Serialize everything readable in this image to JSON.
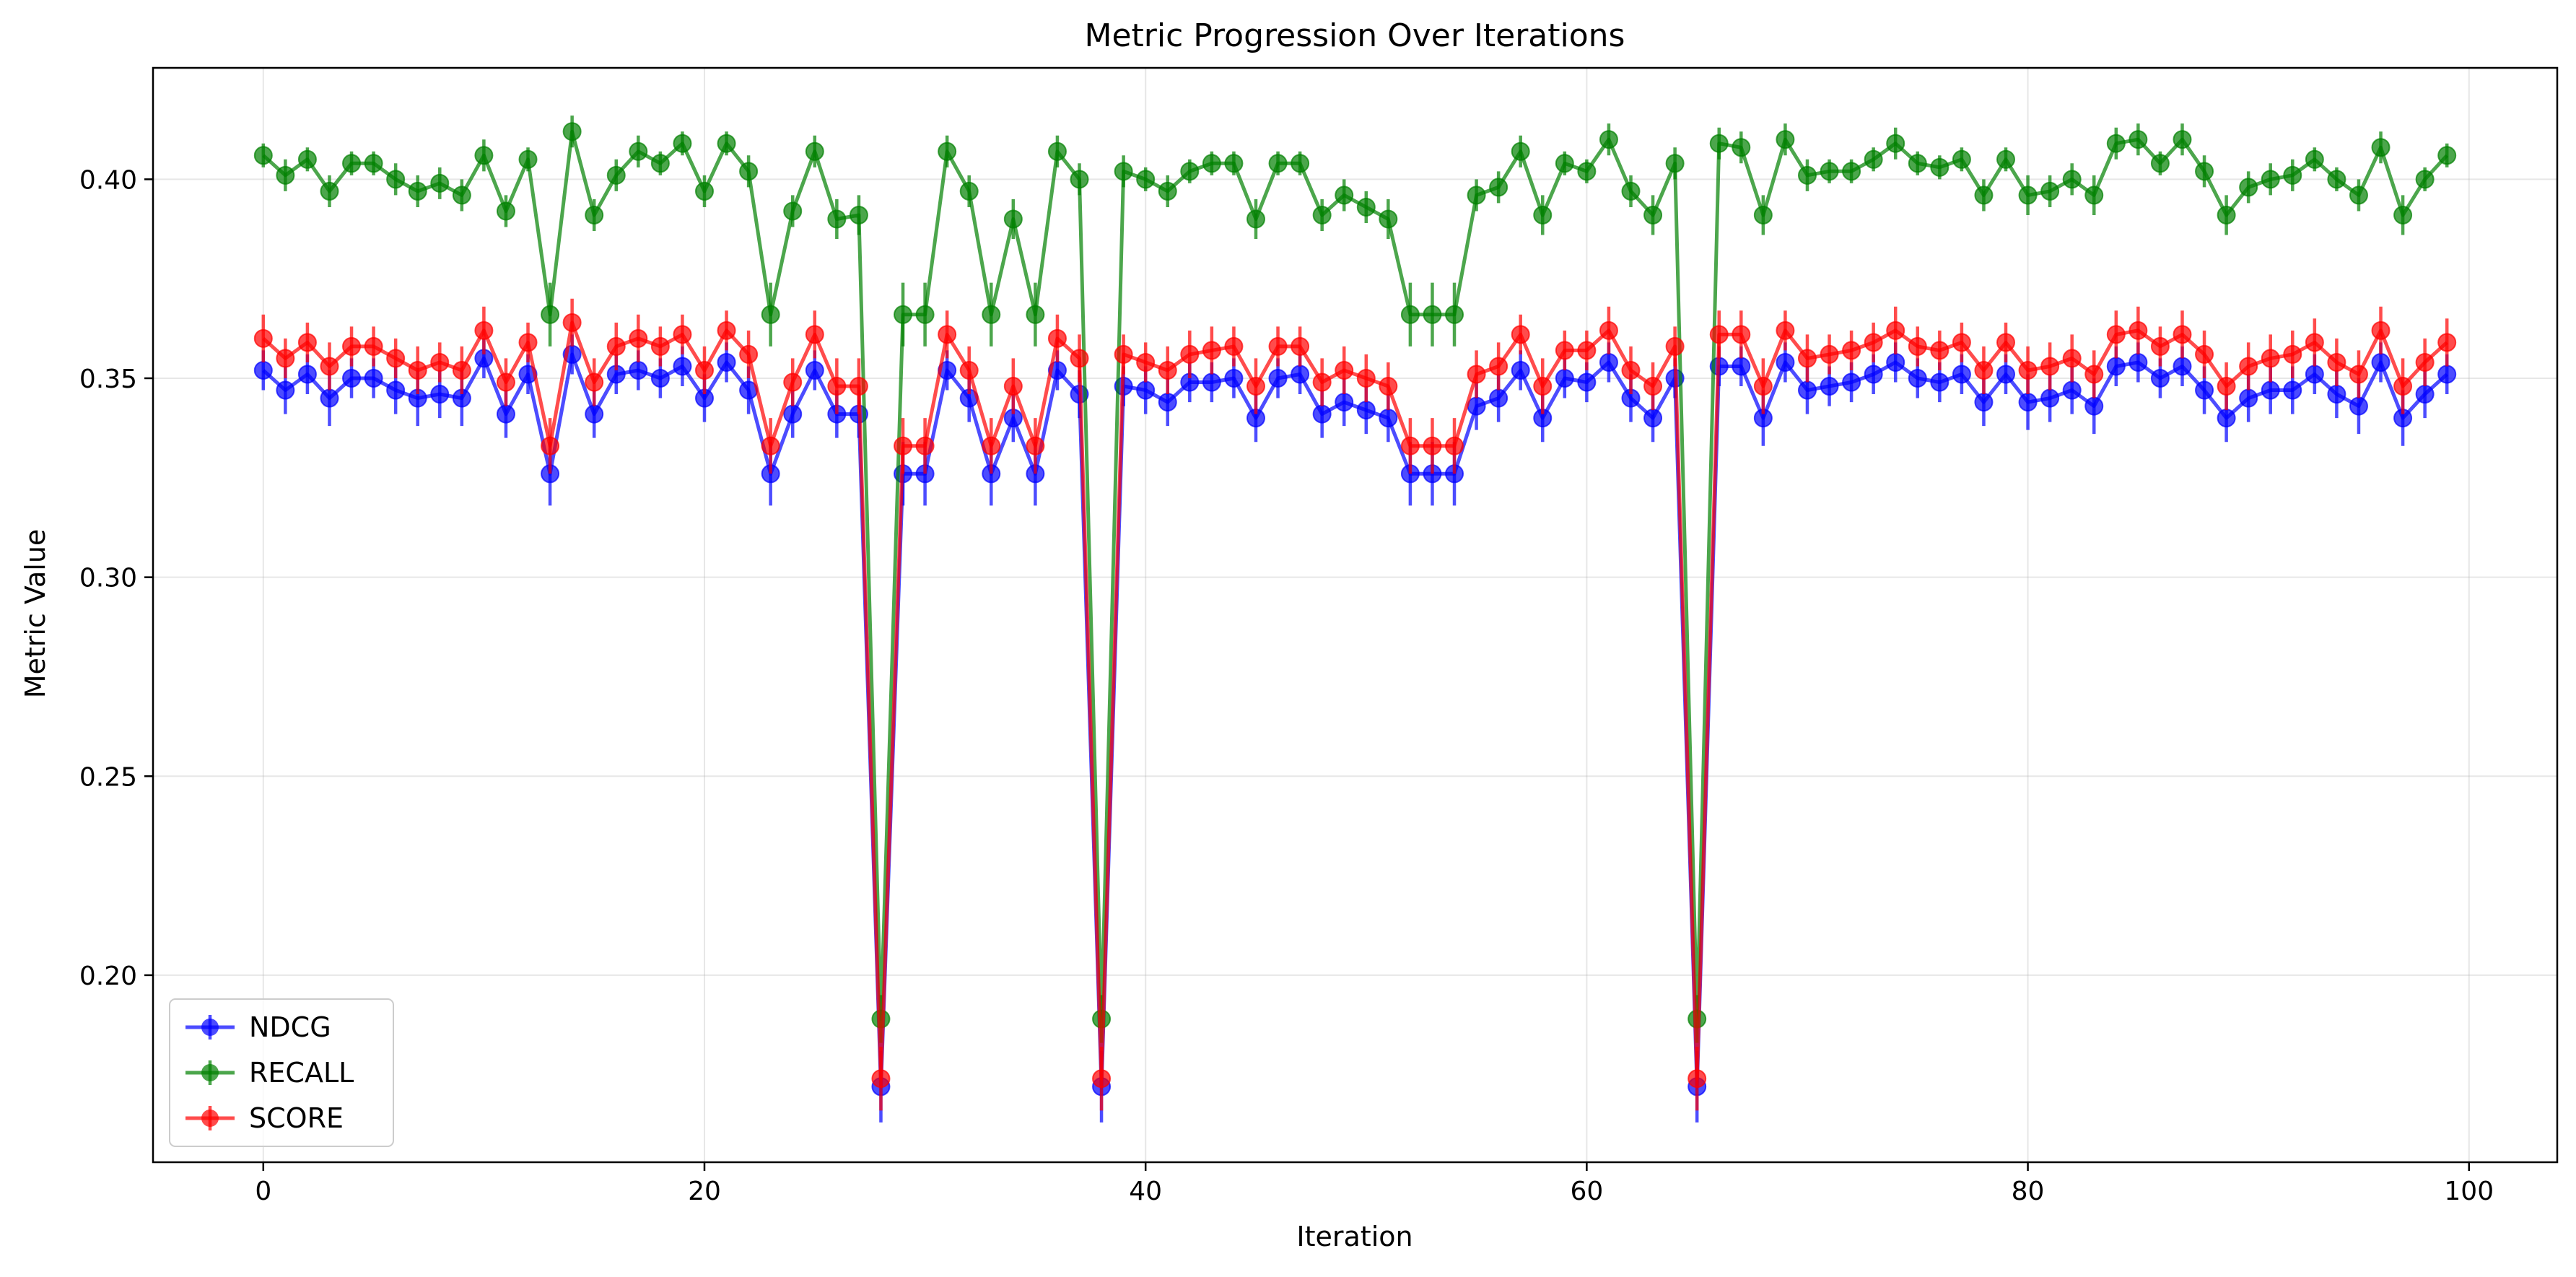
{
  "chart_data": {
    "type": "line",
    "title": "Metric Progression Over Iterations",
    "xlabel": "Iteration",
    "ylabel": "Metric Value",
    "xlim": [
      -5,
      104
    ],
    "ylim": [
      0.153,
      0.428
    ],
    "xticks": [
      0,
      20,
      40,
      60,
      80,
      100
    ],
    "yticks": [
      0.2,
      0.25,
      0.3,
      0.35,
      0.4
    ],
    "xtick_labels": [
      "0",
      "20",
      "40",
      "60",
      "80",
      "100"
    ],
    "ytick_labels": [
      "0.20",
      "0.25",
      "0.30",
      "0.35",
      "0.40"
    ],
    "grid": true,
    "legend_position": "lower-left",
    "error_bars": true,
    "series": [
      {
        "name": "NDCG",
        "color": "#0000ff",
        "values": [
          0.352,
          0.347,
          0.351,
          0.345,
          0.35,
          0.35,
          0.347,
          0.345,
          0.346,
          0.345,
          0.355,
          0.341,
          0.351,
          0.326,
          0.356,
          0.341,
          0.351,
          0.352,
          0.35,
          0.353,
          0.345,
          0.354,
          0.347,
          0.326,
          0.341,
          0.352,
          0.341,
          0.341,
          0.172,
          0.326,
          0.326,
          0.352,
          0.345,
          0.326,
          0.34,
          0.326,
          0.352,
          0.346,
          0.172,
          0.348,
          0.347,
          0.344,
          0.349,
          0.349,
          0.35,
          0.34,
          0.35,
          0.351,
          0.341,
          0.344,
          0.342,
          0.34,
          0.326,
          0.326,
          0.326,
          0.343,
          0.345,
          0.352,
          0.34,
          0.35,
          0.349,
          0.354,
          0.345,
          0.34,
          0.35,
          0.172,
          0.353,
          0.353,
          0.34,
          0.354,
          0.347,
          0.348,
          0.349,
          0.351,
          0.354,
          0.35,
          0.349,
          0.351,
          0.344,
          0.351,
          0.344,
          0.345,
          0.347,
          0.343,
          0.353,
          0.354,
          0.35,
          0.353,
          0.347,
          0.34,
          0.345,
          0.347,
          0.347,
          0.351,
          0.346,
          0.343,
          0.354,
          0.34,
          0.346,
          0.351
        ],
        "errors": [
          0.005,
          0.006,
          0.005,
          0.007,
          0.005,
          0.005,
          0.006,
          0.007,
          0.006,
          0.007,
          0.005,
          0.006,
          0.005,
          0.008,
          0.005,
          0.006,
          0.005,
          0.005,
          0.005,
          0.005,
          0.006,
          0.005,
          0.006,
          0.008,
          0.006,
          0.005,
          0.006,
          0.006,
          0.009,
          0.008,
          0.008,
          0.005,
          0.006,
          0.008,
          0.006,
          0.008,
          0.005,
          0.006,
          0.009,
          0.005,
          0.006,
          0.006,
          0.005,
          0.005,
          0.005,
          0.006,
          0.005,
          0.005,
          0.006,
          0.006,
          0.006,
          0.006,
          0.008,
          0.008,
          0.008,
          0.006,
          0.006,
          0.005,
          0.006,
          0.005,
          0.005,
          0.005,
          0.006,
          0.006,
          0.005,
          0.009,
          0.005,
          0.005,
          0.007,
          0.005,
          0.006,
          0.005,
          0.005,
          0.005,
          0.005,
          0.005,
          0.005,
          0.005,
          0.006,
          0.005,
          0.007,
          0.006,
          0.006,
          0.007,
          0.005,
          0.005,
          0.005,
          0.005,
          0.006,
          0.006,
          0.006,
          0.006,
          0.006,
          0.005,
          0.006,
          0.007,
          0.005,
          0.007,
          0.006,
          0.005
        ]
      },
      {
        "name": "RECALL",
        "color": "#008000",
        "values": [
          0.406,
          0.401,
          0.405,
          0.397,
          0.404,
          0.404,
          0.4,
          0.397,
          0.399,
          0.396,
          0.406,
          0.392,
          0.405,
          0.366,
          0.412,
          0.391,
          0.401,
          0.407,
          0.404,
          0.409,
          0.397,
          0.409,
          0.402,
          0.366,
          0.392,
          0.407,
          0.39,
          0.391,
          0.189,
          0.366,
          0.366,
          0.407,
          0.397,
          0.366,
          0.39,
          0.366,
          0.407,
          0.4,
          0.189,
          0.402,
          0.4,
          0.397,
          0.402,
          0.404,
          0.404,
          0.39,
          0.404,
          0.404,
          0.391,
          0.396,
          0.393,
          0.39,
          0.366,
          0.366,
          0.366,
          0.396,
          0.398,
          0.407,
          0.391,
          0.404,
          0.402,
          0.41,
          0.397,
          0.391,
          0.404,
          0.189,
          0.409,
          0.408,
          0.391,
          0.41,
          0.401,
          0.402,
          0.402,
          0.405,
          0.409,
          0.404,
          0.403,
          0.405,
          0.396,
          0.405,
          0.396,
          0.397,
          0.4,
          0.396,
          0.409,
          0.41,
          0.404,
          0.41,
          0.402,
          0.391,
          0.398,
          0.4,
          0.401,
          0.405,
          0.4,
          0.396,
          0.408,
          0.391,
          0.4,
          0.406
        ],
        "errors": [
          0.003,
          0.004,
          0.003,
          0.004,
          0.003,
          0.003,
          0.004,
          0.004,
          0.004,
          0.004,
          0.004,
          0.004,
          0.003,
          0.008,
          0.004,
          0.004,
          0.004,
          0.004,
          0.003,
          0.003,
          0.004,
          0.003,
          0.004,
          0.008,
          0.004,
          0.004,
          0.005,
          0.005,
          0.006,
          0.008,
          0.008,
          0.004,
          0.004,
          0.008,
          0.005,
          0.008,
          0.004,
          0.004,
          0.006,
          0.004,
          0.003,
          0.004,
          0.003,
          0.003,
          0.003,
          0.005,
          0.003,
          0.003,
          0.004,
          0.004,
          0.004,
          0.005,
          0.008,
          0.008,
          0.008,
          0.004,
          0.004,
          0.004,
          0.005,
          0.003,
          0.003,
          0.004,
          0.004,
          0.005,
          0.004,
          0.006,
          0.004,
          0.004,
          0.005,
          0.004,
          0.004,
          0.003,
          0.003,
          0.003,
          0.004,
          0.003,
          0.003,
          0.003,
          0.004,
          0.003,
          0.005,
          0.004,
          0.004,
          0.005,
          0.004,
          0.004,
          0.003,
          0.004,
          0.004,
          0.005,
          0.004,
          0.004,
          0.004,
          0.003,
          0.003,
          0.004,
          0.004,
          0.005,
          0.003,
          0.003
        ]
      },
      {
        "name": "SCORE",
        "color": "#ff0000",
        "values": [
          0.36,
          0.355,
          0.359,
          0.353,
          0.358,
          0.358,
          0.355,
          0.352,
          0.354,
          0.352,
          0.362,
          0.349,
          0.359,
          0.333,
          0.364,
          0.349,
          0.358,
          0.36,
          0.358,
          0.361,
          0.352,
          0.362,
          0.356,
          0.333,
          0.349,
          0.361,
          0.348,
          0.348,
          0.174,
          0.333,
          0.333,
          0.361,
          0.352,
          0.333,
          0.348,
          0.333,
          0.36,
          0.355,
          0.174,
          0.356,
          0.354,
          0.352,
          0.356,
          0.357,
          0.358,
          0.348,
          0.358,
          0.358,
          0.349,
          0.352,
          0.35,
          0.348,
          0.333,
          0.333,
          0.333,
          0.351,
          0.353,
          0.361,
          0.348,
          0.357,
          0.357,
          0.362,
          0.352,
          0.348,
          0.358,
          0.174,
          0.361,
          0.361,
          0.348,
          0.362,
          0.355,
          0.356,
          0.357,
          0.359,
          0.362,
          0.358,
          0.357,
          0.359,
          0.352,
          0.359,
          0.352,
          0.353,
          0.355,
          0.351,
          0.361,
          0.362,
          0.358,
          0.361,
          0.356,
          0.348,
          0.353,
          0.355,
          0.356,
          0.359,
          0.354,
          0.351,
          0.362,
          0.348,
          0.354,
          0.359
        ],
        "errors": [
          0.006,
          0.005,
          0.005,
          0.006,
          0.005,
          0.005,
          0.005,
          0.006,
          0.005,
          0.006,
          0.006,
          0.006,
          0.005,
          0.007,
          0.006,
          0.006,
          0.006,
          0.006,
          0.005,
          0.005,
          0.006,
          0.005,
          0.006,
          0.007,
          0.006,
          0.006,
          0.007,
          0.007,
          0.008,
          0.007,
          0.007,
          0.006,
          0.006,
          0.007,
          0.007,
          0.007,
          0.006,
          0.006,
          0.008,
          0.005,
          0.005,
          0.006,
          0.006,
          0.006,
          0.005,
          0.007,
          0.005,
          0.005,
          0.006,
          0.006,
          0.006,
          0.006,
          0.007,
          0.007,
          0.007,
          0.006,
          0.006,
          0.005,
          0.007,
          0.005,
          0.005,
          0.006,
          0.006,
          0.006,
          0.005,
          0.008,
          0.006,
          0.006,
          0.007,
          0.005,
          0.006,
          0.005,
          0.005,
          0.005,
          0.006,
          0.005,
          0.005,
          0.005,
          0.006,
          0.005,
          0.006,
          0.006,
          0.006,
          0.006,
          0.006,
          0.006,
          0.005,
          0.006,
          0.006,
          0.006,
          0.006,
          0.006,
          0.006,
          0.006,
          0.006,
          0.006,
          0.006,
          0.007,
          0.006,
          0.006
        ]
      }
    ]
  }
}
